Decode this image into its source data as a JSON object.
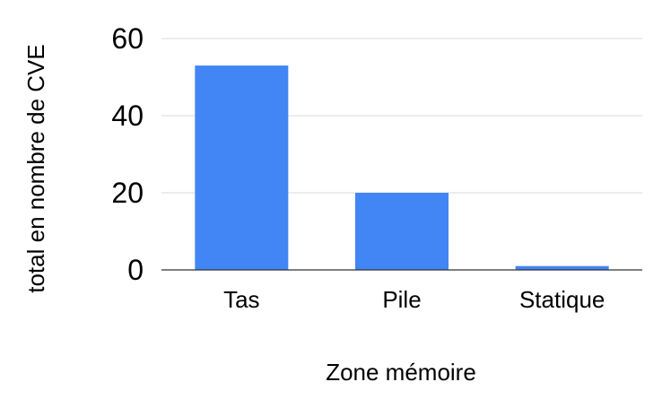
{
  "chart_data": {
    "type": "bar",
    "title": "",
    "categories": [
      "Tas",
      "Pile",
      "Statique"
    ],
    "series": [
      {
        "values": [
          53,
          20,
          1
        ]
      }
    ],
    "xlabel": "Zone mémoire",
    "ylabel": "total en nombre de CVE",
    "ylim": [
      0,
      60
    ],
    "yticks": [
      0,
      20,
      40,
      60
    ],
    "ytick_labels": [
      "0",
      "20",
      "40",
      "60"
    ],
    "grid": true,
    "legend": "none"
  },
  "colors": {
    "bar": "#4285f4",
    "grid": "#d9d9d9",
    "axis": "#333333"
  }
}
